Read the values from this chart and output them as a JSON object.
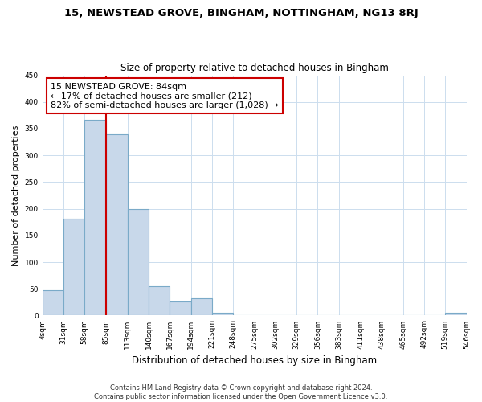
{
  "title": "15, NEWSTEAD GROVE, BINGHAM, NOTTINGHAM, NG13 8RJ",
  "subtitle": "Size of property relative to detached houses in Bingham",
  "xlabel": "Distribution of detached houses by size in Bingham",
  "ylabel": "Number of detached properties",
  "bin_edges": [
    4,
    31,
    58,
    85,
    113,
    140,
    167,
    194,
    221,
    248,
    275,
    302,
    329,
    356,
    383,
    411,
    438,
    465,
    492,
    519,
    546
  ],
  "bar_heights": [
    47,
    181,
    367,
    339,
    199,
    55,
    26,
    33,
    5,
    0,
    0,
    0,
    0,
    0,
    0,
    0,
    0,
    0,
    0,
    5
  ],
  "bar_color": "#c8d8ea",
  "bar_edge_color": "#7aaac8",
  "property_line_x": 85,
  "property_line_color": "#cc0000",
  "annotation_text": "15 NEWSTEAD GROVE: 84sqm\n← 17% of detached houses are smaller (212)\n82% of semi-detached houses are larger (1,028) →",
  "annotation_box_edge_color": "#cc0000",
  "ylim": [
    0,
    450
  ],
  "xlim": [
    4,
    546
  ],
  "tick_labels": [
    "4sqm",
    "31sqm",
    "58sqm",
    "85sqm",
    "113sqm",
    "140sqm",
    "167sqm",
    "194sqm",
    "221sqm",
    "248sqm",
    "275sqm",
    "302sqm",
    "329sqm",
    "356sqm",
    "383sqm",
    "411sqm",
    "438sqm",
    "465sqm",
    "492sqm",
    "519sqm",
    "546sqm"
  ],
  "tick_positions": [
    4,
    31,
    58,
    85,
    113,
    140,
    167,
    194,
    221,
    248,
    275,
    302,
    329,
    356,
    383,
    411,
    438,
    465,
    492,
    519,
    546
  ],
  "footer_text": "Contains HM Land Registry data © Crown copyright and database right 2024.\nContains public sector information licensed under the Open Government Licence v3.0.",
  "background_color": "#ffffff",
  "grid_color": "#ccddee"
}
